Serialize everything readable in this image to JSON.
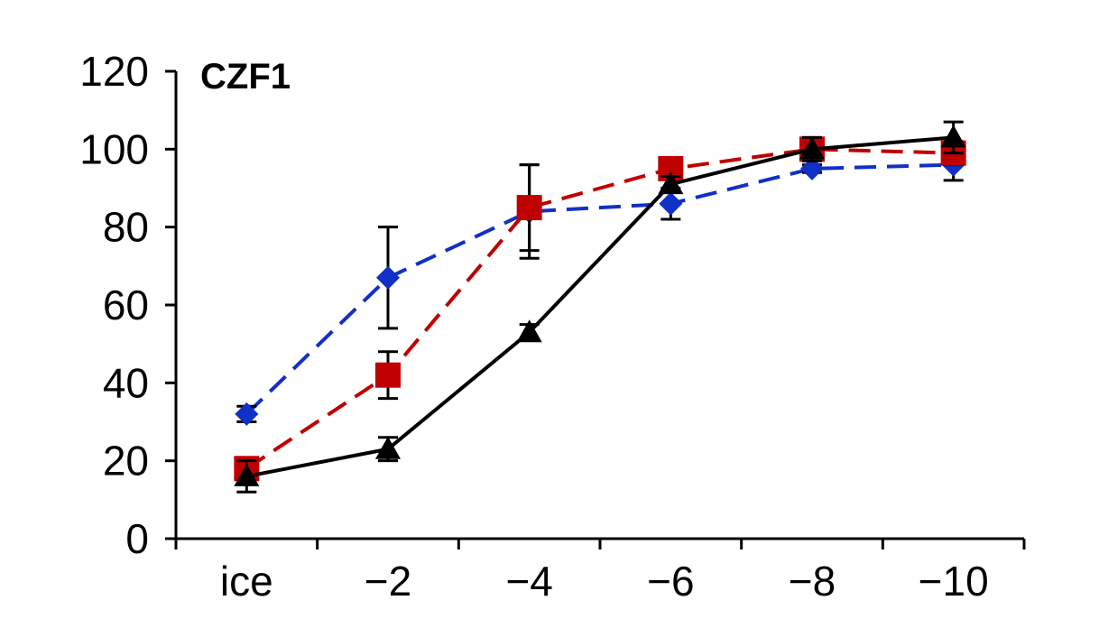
{
  "chart_data": {
    "type": "line",
    "title": "CZF1",
    "xlabel": "",
    "ylabel": "",
    "categories": [
      "ice",
      "−2",
      "−4",
      "−6",
      "−8",
      "−10"
    ],
    "ylim": [
      0,
      120
    ],
    "yticks": [
      0,
      20,
      40,
      60,
      80,
      100,
      120
    ],
    "grid": false,
    "legend": "none",
    "series": [
      {
        "marker": "diamond",
        "line_style": "dashed",
        "color": "#1030c8",
        "values": [
          32,
          67,
          84,
          86,
          95,
          96
        ],
        "error": [
          2,
          13,
          12,
          4,
          1,
          4
        ]
      },
      {
        "marker": "square",
        "line_style": "dashed",
        "color": "#c00000",
        "values": [
          18,
          42,
          85,
          95,
          100,
          99
        ],
        "error": [
          2,
          6,
          11,
          1,
          3,
          3
        ]
      },
      {
        "marker": "triangle",
        "line_style": "solid",
        "color": "#000000",
        "values": [
          16,
          23,
          53,
          91,
          100,
          103
        ],
        "error": [
          4,
          3,
          2,
          2,
          3,
          4
        ]
      }
    ]
  }
}
